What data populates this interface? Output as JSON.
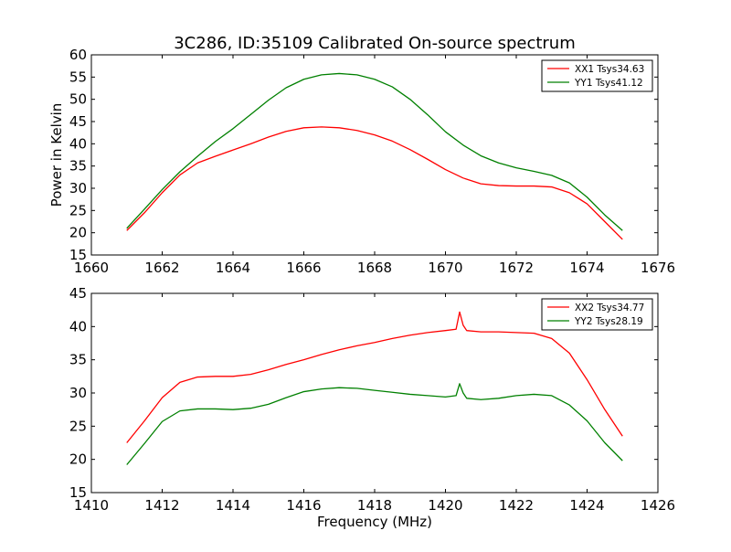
{
  "colors": {
    "xx": "#ff0000",
    "yy": "#008000",
    "frame": "#000000"
  },
  "chart_data": {
    "title": "3C286, ID:35109 Calibrated On-source spectrum",
    "shared_xlabel": "Frequency (MHz)",
    "subplots": [
      {
        "type": "line",
        "ylabel": "Power in Kelvin",
        "xlabel": "",
        "xlim": [
          1660,
          1676
        ],
        "ylim": [
          15,
          60
        ],
        "xticks": [
          1660,
          1662,
          1664,
          1666,
          1668,
          1670,
          1672,
          1674,
          1676
        ],
        "yticks": [
          15,
          20,
          25,
          30,
          35,
          40,
          45,
          50,
          55,
          60
        ],
        "legend_position": "top-right",
        "series": [
          {
            "name": "XX1 Tsys34.63",
            "color_key": "xx",
            "x": [
              1661.0,
              1661.5,
              1662.0,
              1662.5,
              1663.0,
              1663.5,
              1664.0,
              1664.5,
              1665.0,
              1665.5,
              1666.0,
              1666.5,
              1667.0,
              1667.5,
              1668.0,
              1668.5,
              1669.0,
              1669.5,
              1670.0,
              1670.5,
              1671.0,
              1671.5,
              1672.0,
              1672.5,
              1673.0,
              1673.5,
              1674.0,
              1674.5,
              1675.0
            ],
            "values": [
              20.5,
              24.5,
              29.0,
              33.0,
              35.7,
              37.2,
              38.6,
              40.0,
              41.5,
              42.8,
              43.6,
              43.8,
              43.6,
              43.0,
              42.0,
              40.6,
              38.7,
              36.5,
              34.2,
              32.3,
              31.0,
              30.6,
              30.5,
              30.5,
              30.3,
              29.0,
              26.5,
              22.5,
              18.5
            ]
          },
          {
            "name": "YY1 Tsys41.12",
            "color_key": "yy",
            "x": [
              1661.0,
              1661.5,
              1662.0,
              1662.5,
              1663.0,
              1663.5,
              1664.0,
              1664.5,
              1665.0,
              1665.5,
              1666.0,
              1666.5,
              1667.0,
              1667.5,
              1668.0,
              1668.5,
              1669.0,
              1669.5,
              1670.0,
              1670.5,
              1671.0,
              1671.5,
              1672.0,
              1672.5,
              1673.0,
              1673.5,
              1674.0,
              1674.5,
              1675.0
            ],
            "values": [
              21.0,
              25.3,
              29.7,
              33.7,
              37.2,
              40.5,
              43.4,
              46.6,
              49.8,
              52.6,
              54.5,
              55.5,
              55.8,
              55.5,
              54.5,
              52.8,
              50.0,
              46.5,
              42.7,
              39.7,
              37.3,
              35.7,
              34.6,
              33.8,
              32.9,
              31.2,
              28.0,
              24.0,
              20.5
            ]
          }
        ]
      },
      {
        "type": "line",
        "ylabel": "",
        "xlabel": "Frequency (MHz)",
        "xlim": [
          1410,
          1426
        ],
        "ylim": [
          15,
          45
        ],
        "xticks": [
          1410,
          1412,
          1414,
          1416,
          1418,
          1420,
          1422,
          1424,
          1426
        ],
        "yticks": [
          15,
          20,
          25,
          30,
          35,
          40,
          45
        ],
        "legend_position": "top-right",
        "series": [
          {
            "name": "XX2 Tsys34.77",
            "color_key": "xx",
            "x": [
              1411.0,
              1411.5,
              1412.0,
              1412.5,
              1413.0,
              1413.5,
              1414.0,
              1414.5,
              1415.0,
              1415.5,
              1416.0,
              1416.5,
              1417.0,
              1417.5,
              1418.0,
              1418.5,
              1419.0,
              1419.5,
              1420.0,
              1420.3,
              1420.4,
              1420.5,
              1420.6,
              1421.0,
              1421.5,
              1422.0,
              1422.5,
              1423.0,
              1423.5,
              1424.0,
              1424.5,
              1425.0
            ],
            "values": [
              22.5,
              25.8,
              29.3,
              31.6,
              32.4,
              32.5,
              32.5,
              32.8,
              33.5,
              34.3,
              35.0,
              35.8,
              36.5,
              37.1,
              37.6,
              38.2,
              38.7,
              39.1,
              39.4,
              39.6,
              42.2,
              40.2,
              39.4,
              39.2,
              39.2,
              39.1,
              39.0,
              38.2,
              36.0,
              32.0,
              27.5,
              23.5
            ]
          },
          {
            "name": "YY2 Tsys28.19",
            "color_key": "yy",
            "x": [
              1411.0,
              1411.5,
              1412.0,
              1412.5,
              1413.0,
              1413.5,
              1414.0,
              1414.5,
              1415.0,
              1415.5,
              1416.0,
              1416.5,
              1417.0,
              1417.5,
              1418.0,
              1418.5,
              1419.0,
              1419.5,
              1420.0,
              1420.3,
              1420.4,
              1420.5,
              1420.6,
              1421.0,
              1421.5,
              1422.0,
              1422.5,
              1423.0,
              1423.5,
              1424.0,
              1424.5,
              1425.0
            ],
            "values": [
              19.2,
              22.4,
              25.7,
              27.3,
              27.6,
              27.6,
              27.5,
              27.7,
              28.3,
              29.3,
              30.2,
              30.6,
              30.8,
              30.7,
              30.4,
              30.1,
              29.8,
              29.6,
              29.4,
              29.6,
              31.4,
              30.0,
              29.2,
              29.0,
              29.2,
              29.6,
              29.8,
              29.6,
              28.2,
              25.8,
              22.5,
              19.8
            ]
          }
        ]
      }
    ]
  }
}
